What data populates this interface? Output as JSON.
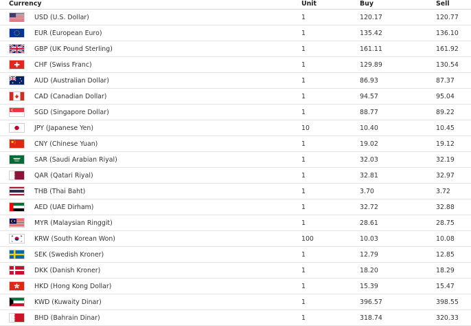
{
  "header": {
    "currency": "Currency",
    "unit": "Unit",
    "buy": "Buy",
    "sell": "Sell"
  },
  "rows": [
    {
      "flag": "us-flag-icon",
      "name": "USD (U.S. Dollar)",
      "unit": "1",
      "buy": "120.17",
      "sell": "120.77"
    },
    {
      "flag": "eu-flag-icon",
      "name": "EUR (European Euro)",
      "unit": "1",
      "buy": "135.42",
      "sell": "136.10"
    },
    {
      "flag": "gb-flag-icon",
      "name": "GBP (UK Pound Sterling)",
      "unit": "1",
      "buy": "161.11",
      "sell": "161.92"
    },
    {
      "flag": "ch-flag-icon",
      "name": "CHF (Swiss Franc)",
      "unit": "1",
      "buy": "129.89",
      "sell": "130.54"
    },
    {
      "flag": "au-flag-icon",
      "name": "AUD (Australian Dollar)",
      "unit": "1",
      "buy": "86.93",
      "sell": "87.37"
    },
    {
      "flag": "ca-flag-icon",
      "name": "CAD (Canadian Dollar)",
      "unit": "1",
      "buy": "94.57",
      "sell": "95.04"
    },
    {
      "flag": "sg-flag-icon",
      "name": "SGD (Singapore Dollar)",
      "unit": "1",
      "buy": "88.77",
      "sell": "89.22"
    },
    {
      "flag": "jp-flag-icon",
      "name": "JPY (Japanese Yen)",
      "unit": "10",
      "buy": "10.40",
      "sell": "10.45"
    },
    {
      "flag": "cn-flag-icon",
      "name": "CNY (Chinese Yuan)",
      "unit": "1",
      "buy": "19.02",
      "sell": "19.12"
    },
    {
      "flag": "sa-flag-icon",
      "name": "SAR (Saudi Arabian Riyal)",
      "unit": "1",
      "buy": "32.03",
      "sell": "32.19"
    },
    {
      "flag": "qa-flag-icon",
      "name": "QAR (Qatari Riyal)",
      "unit": "1",
      "buy": "32.81",
      "sell": "32.97"
    },
    {
      "flag": "th-flag-icon",
      "name": "THB (Thai Baht)",
      "unit": "1",
      "buy": "3.70",
      "sell": "3.72"
    },
    {
      "flag": "ae-flag-icon",
      "name": "AED (UAE Dirham)",
      "unit": "1",
      "buy": "32.72",
      "sell": "32.88"
    },
    {
      "flag": "my-flag-icon",
      "name": "MYR (Malaysian Ringgit)",
      "unit": "1",
      "buy": "28.61",
      "sell": "28.75"
    },
    {
      "flag": "kr-flag-icon",
      "name": "KRW (South Korean Won)",
      "unit": "100",
      "buy": "10.03",
      "sell": "10.08"
    },
    {
      "flag": "se-flag-icon",
      "name": "SEK (Swedish Kroner)",
      "unit": "1",
      "buy": "12.79",
      "sell": "12.85"
    },
    {
      "flag": "dk-flag-icon",
      "name": "DKK (Danish Kroner)",
      "unit": "1",
      "buy": "18.20",
      "sell": "18.29"
    },
    {
      "flag": "hk-flag-icon",
      "name": "HKD (Hong Kong Dollar)",
      "unit": "1",
      "buy": "15.39",
      "sell": "15.47"
    },
    {
      "flag": "kw-flag-icon",
      "name": "KWD (Kuwaity Dinar)",
      "unit": "1",
      "buy": "396.57",
      "sell": "398.55"
    },
    {
      "flag": "bh-flag-icon",
      "name": "BHD (Bahrain Dinar)",
      "unit": "1",
      "buy": "318.74",
      "sell": "320.33"
    }
  ]
}
